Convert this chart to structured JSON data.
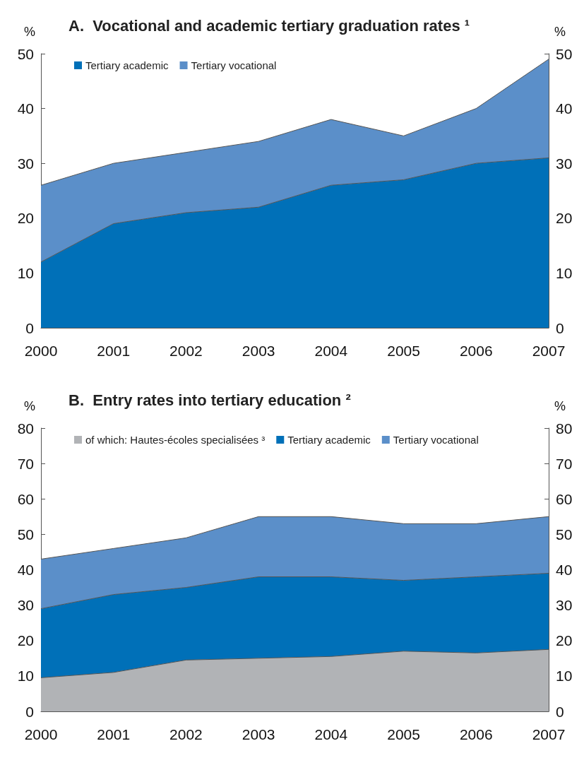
{
  "chart_data": [
    {
      "type": "area",
      "title": "A.  Vocational and academic tertiary graduation rates ¹",
      "ylabel": "%",
      "y2label": "%",
      "categories": [
        "2000",
        "2001",
        "2002",
        "2003",
        "2004",
        "2005",
        "2006",
        "2007"
      ],
      "stacked": true,
      "legend": "top left",
      "grid": false,
      "series": [
        {
          "name": "Tertiary academic",
          "color": "#0070b8",
          "values": [
            12,
            19,
            21,
            22,
            26,
            27,
            30,
            31
          ]
        },
        {
          "name": "Tertiary vocational",
          "color": "#5b8fc9",
          "values": [
            14,
            11,
            11,
            12,
            12,
            8,
            10,
            18
          ]
        }
      ],
      "ylim": [
        0,
        50
      ],
      "yticks": [
        0,
        10,
        20,
        30,
        40,
        50
      ],
      "y2lim": [
        0,
        50
      ],
      "y2ticks": [
        0,
        10,
        20,
        30,
        40,
        50
      ]
    },
    {
      "type": "area",
      "title": "B.  Entry rates into tertiary education ²",
      "ylabel": "%",
      "y2label": "%",
      "categories": [
        "2000",
        "2001",
        "2002",
        "2003",
        "2004",
        "2005",
        "2006",
        "2007"
      ],
      "stacked": true,
      "legend": "top left",
      "grid": false,
      "series": [
        {
          "name": "of which: Hautes-écoles specialisées ³",
          "color": "#b1b3b6",
          "values": [
            9.5,
            11,
            14.5,
            15,
            15.5,
            17,
            16.5,
            17.5
          ]
        },
        {
          "name": "Tertiary academic",
          "color": "#0070b8",
          "values": [
            19.5,
            22,
            20.5,
            23,
            22.5,
            20,
            21.5,
            21.5
          ]
        },
        {
          "name": "Tertiary vocational",
          "color": "#5b8fc9",
          "values": [
            14,
            13,
            14,
            17,
            17,
            16,
            15,
            16
          ]
        }
      ],
      "ylim": [
        0,
        80
      ],
      "yticks": [
        0,
        10,
        20,
        30,
        40,
        50,
        60,
        70,
        80
      ],
      "y2lim": [
        0,
        80
      ],
      "y2ticks": [
        0,
        10,
        20,
        30,
        40,
        50,
        60,
        70,
        80
      ]
    }
  ]
}
